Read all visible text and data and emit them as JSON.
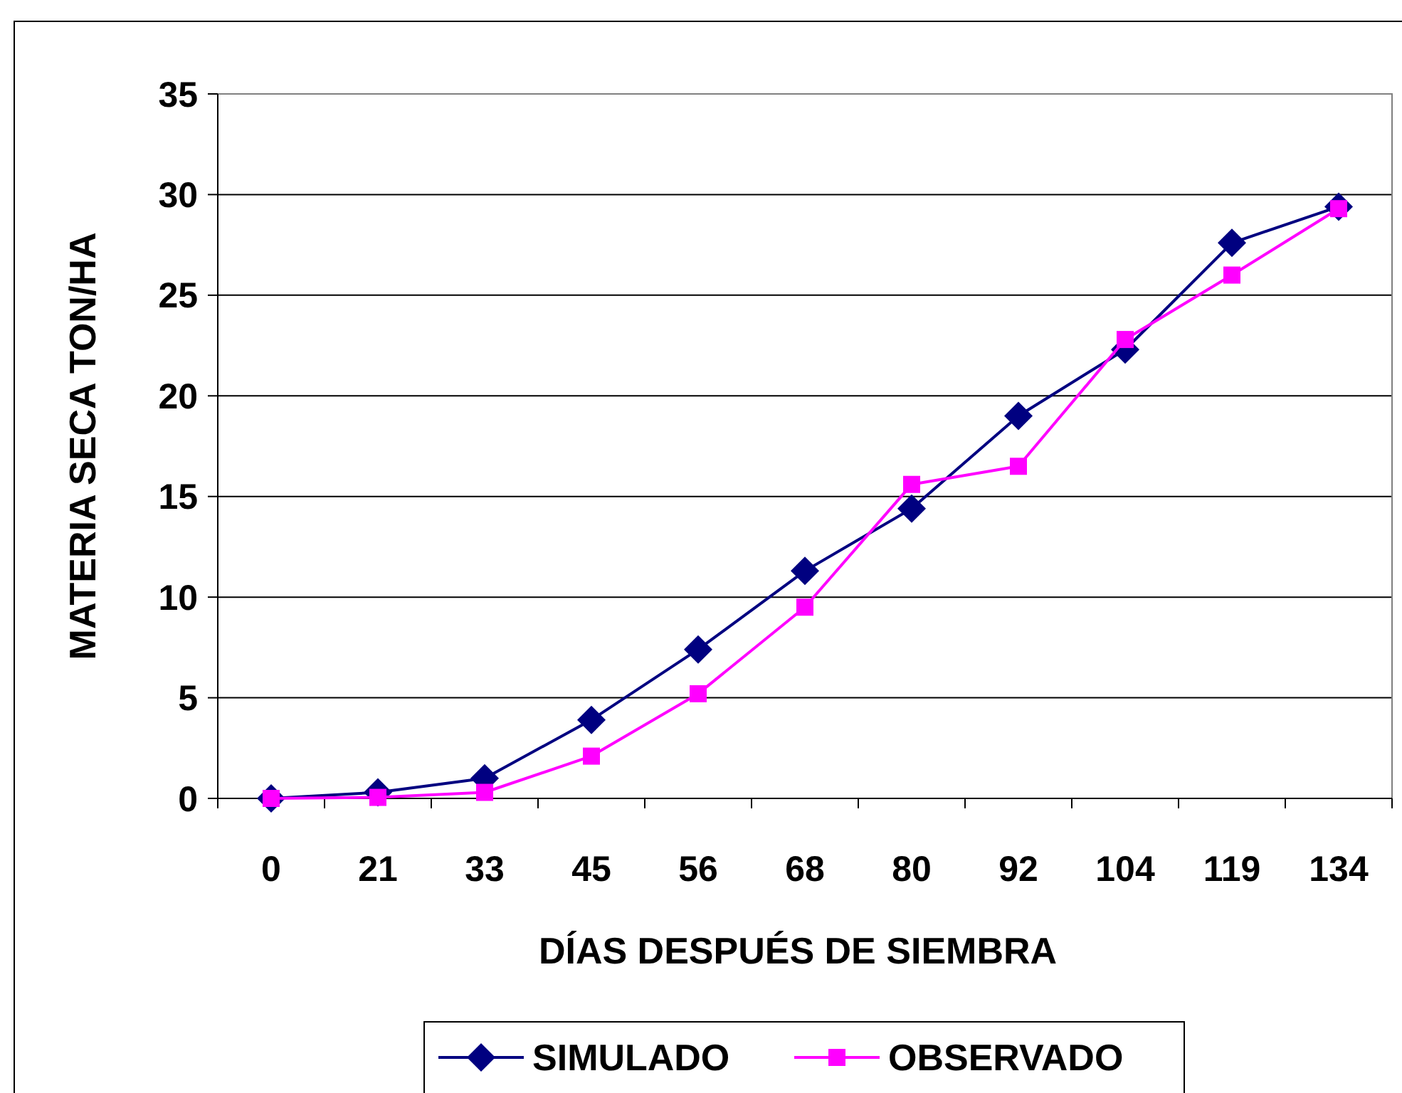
{
  "chart_data": {
    "type": "line",
    "xlabel": "DÍAS DESPUÉS DE SIEMBRA",
    "ylabel": "MATERIA SECA TON/HA",
    "categories": [
      "0",
      "21",
      "33",
      "45",
      "56",
      "68",
      "80",
      "92",
      "104",
      "119",
      "134"
    ],
    "series": [
      {
        "name": "SIMULADO",
        "color": "#000080",
        "marker": "diamond",
        "values": [
          0,
          0.3,
          1.0,
          3.9,
          7.4,
          11.3,
          14.4,
          19.0,
          22.3,
          27.6,
          29.4
        ]
      },
      {
        "name": "OBSERVADO",
        "color": "#ff00ff",
        "marker": "square",
        "values": [
          0,
          0.05,
          0.3,
          2.1,
          5.2,
          9.5,
          15.6,
          16.5,
          22.8,
          26.0,
          29.3
        ]
      }
    ],
    "ylim": [
      0,
      35
    ],
    "yticks": [
      0,
      5,
      10,
      15,
      20,
      25,
      30,
      35
    ],
    "grid": "y",
    "legend": "bottom"
  }
}
